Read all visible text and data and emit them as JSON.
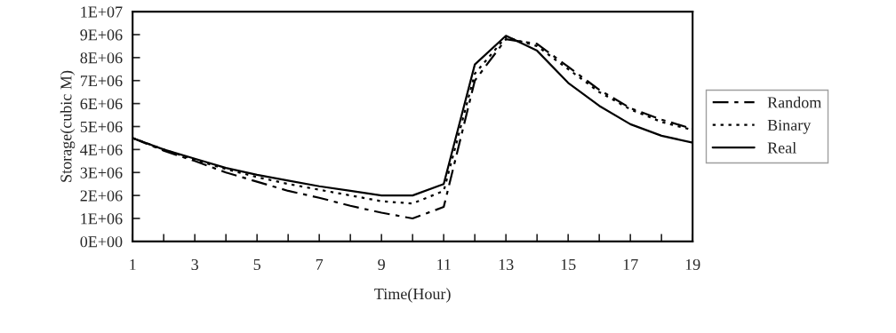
{
  "chart_data": {
    "type": "line",
    "xlabel": "Time(Hour)",
    "ylabel": "Storage(cubic M)",
    "x": [
      1,
      2,
      3,
      4,
      5,
      6,
      7,
      8,
      9,
      10,
      11,
      12,
      13,
      14,
      15,
      16,
      17,
      18,
      19
    ],
    "series": [
      {
        "name": "Random",
        "color": "#000000",
        "line_style": "dashdot",
        "values": [
          4500000,
          3950000,
          3500000,
          3000000,
          2600000,
          2200000,
          1900000,
          1550000,
          1250000,
          1000000,
          1500000,
          7000000,
          8800000,
          8600000,
          7600000,
          6600000,
          5800000,
          5300000,
          4900000
        ]
      },
      {
        "name": "Binary",
        "color": "#000000",
        "line_style": "dotted",
        "values": [
          4500000,
          4000000,
          3550000,
          3150000,
          2800000,
          2500000,
          2250000,
          2000000,
          1750000,
          1650000,
          2200000,
          7300000,
          8900000,
          8500000,
          7500000,
          6500000,
          5750000,
          5200000,
          4850000
        ]
      },
      {
        "name": "Real",
        "color": "#000000",
        "line_style": "solid",
        "values": [
          4500000,
          4000000,
          3600000,
          3200000,
          2900000,
          2650000,
          2400000,
          2200000,
          2000000,
          2000000,
          2500000,
          7700000,
          8950000,
          8300000,
          6900000,
          5900000,
          5100000,
          4600000,
          4300000
        ]
      }
    ],
    "xlim": [
      1,
      19
    ],
    "xticks": [
      1,
      {
        "value": 2,
        "label": null
      },
      3,
      {
        "value": 4,
        "label": null
      },
      5,
      {
        "value": 6,
        "label": null
      },
      7,
      {
        "value": 8,
        "label": null
      },
      9,
      {
        "value": 10,
        "label": null
      },
      11,
      {
        "value": 12,
        "label": null
      },
      13,
      {
        "value": 14,
        "label": null
      },
      15,
      {
        "value": 16,
        "label": null
      },
      17,
      {
        "value": 18,
        "label": null
      },
      19
    ],
    "ylim": [
      0,
      10000000
    ],
    "yticks": [
      {
        "value": 0,
        "label": "0E+00"
      },
      {
        "value": 1000000,
        "label": "1E+06"
      },
      {
        "value": 2000000,
        "label": "2E+06"
      },
      {
        "value": 3000000,
        "label": "3E+06"
      },
      {
        "value": 4000000,
        "label": "4E+06"
      },
      {
        "value": 5000000,
        "label": "5E+06"
      },
      {
        "value": 6000000,
        "label": "6E+06"
      },
      {
        "value": 7000000,
        "label": "7E+06"
      },
      {
        "value": 8000000,
        "label": "8E+06"
      },
      {
        "value": 9000000,
        "label": "9E+06"
      },
      {
        "value": 10000000,
        "label": "1E+07"
      }
    ],
    "grid": false,
    "legend": "right",
    "marker": "none"
  }
}
